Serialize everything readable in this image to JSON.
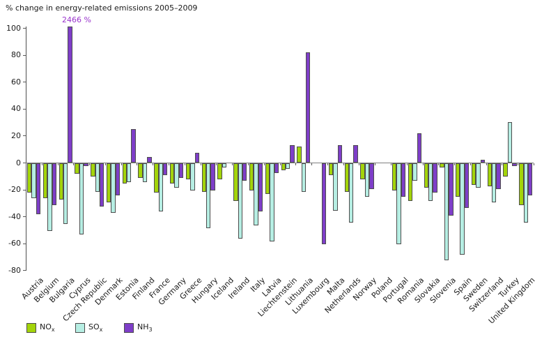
{
  "title": "% change in energy-related emissions 2005–2009",
  "annotation": "2466 %",
  "legend": {
    "items": [
      {
        "label": "NO",
        "sub": "x"
      },
      {
        "label": "SO",
        "sub": "x"
      },
      {
        "label": "NH",
        "sub": "3"
      }
    ]
  },
  "chart_data": {
    "type": "bar",
    "title": "% change in energy-related emissions 2005–2009",
    "xlabel": "",
    "ylabel": "% change",
    "ylim": [
      -80,
      100
    ],
    "y_ticks": [
      100,
      80,
      60,
      40,
      20,
      0,
      -20,
      -40,
      -60,
      -80
    ],
    "grid": false,
    "legend_position": "bottom-left",
    "annotation": {
      "text": "2466 %",
      "target": "Bulgaria NH3",
      "note": "Bulgaria NH3 bar exceeds axis maximum and is clipped at top"
    },
    "categories": [
      "Austria",
      "Belgium",
      "Bulgaria",
      "Cyprus",
      "Czech Republic",
      "Denmark",
      "Estonia",
      "Finland",
      "France",
      "Germany",
      "Greece",
      "Hungary",
      "Iceland",
      "Ireland",
      "Italy",
      "Latvia",
      "Liechtenstein",
      "Lithuania",
      "Luxembourg",
      "Malta",
      "Netherlands",
      "Norway",
      "Poland",
      "Portugal",
      "Romania",
      "Slovakia",
      "Slovenia",
      "Spain",
      "Sweden",
      "Switzerland",
      "Turkey",
      "United Kingdom"
    ],
    "series": [
      {
        "name": "NOx",
        "color": "#a3d40a",
        "values": [
          -22,
          -26,
          -27,
          -8,
          -10,
          -29,
          -15,
          -11,
          -22,
          -15,
          -12,
          -21,
          -12,
          -28,
          -20,
          -23,
          -5,
          12,
          null,
          -9,
          -21,
          -12,
          null,
          -20,
          -28,
          -18,
          -3,
          -25,
          -16,
          -17,
          -10,
          -31
        ]
      },
      {
        "name": "SOx",
        "color": "#b6eee3",
        "values": [
          -26,
          -50,
          -45,
          -53,
          -21,
          -37,
          -14,
          -14,
          -36,
          -18,
          -20,
          -48,
          -3,
          -56,
          -46,
          -58,
          -4,
          -21,
          null,
          -35,
          -44,
          -25,
          null,
          -60,
          -13,
          -28,
          -72,
          -68,
          -18,
          -29,
          30,
          -44
        ]
      },
      {
        "name": "NH3",
        "color": "#7e3ec8",
        "values": [
          -38,
          -31,
          2466,
          -2,
          -32,
          -24,
          25,
          4,
          -9,
          -11,
          7,
          -20,
          null,
          -13,
          -36,
          -7,
          13,
          82,
          -60,
          13,
          13,
          -19,
          null,
          -25,
          22,
          -22,
          -39,
          -33,
          2,
          -19,
          -2,
          -24
        ]
      }
    ]
  }
}
